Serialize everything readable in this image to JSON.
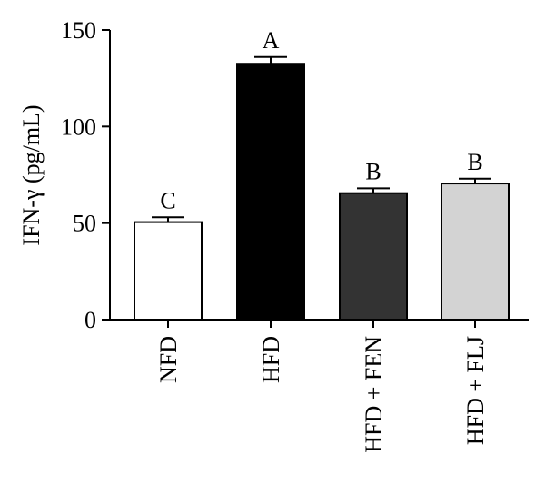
{
  "chart_data": {
    "type": "bar",
    "title": "",
    "xlabel": "",
    "ylabel": "IFN-γ (pg/mL)",
    "ylim": [
      0,
      150
    ],
    "yticks": [
      0,
      50,
      100,
      150
    ],
    "grid": false,
    "categories": [
      "NFD",
      "HFD",
      "HFD + FEN",
      "HFD + FLJ"
    ],
    "values": [
      50.5,
      132.5,
      65.5,
      70.5
    ],
    "errors": [
      2.5,
      3.5,
      2.5,
      2.5
    ],
    "significance_labels": [
      "C",
      "A",
      "B",
      "B"
    ],
    "bar_colors": [
      "#ffffff",
      "#000000",
      "#333333",
      "#d3d3d3"
    ],
    "edge_color": "#000000"
  }
}
